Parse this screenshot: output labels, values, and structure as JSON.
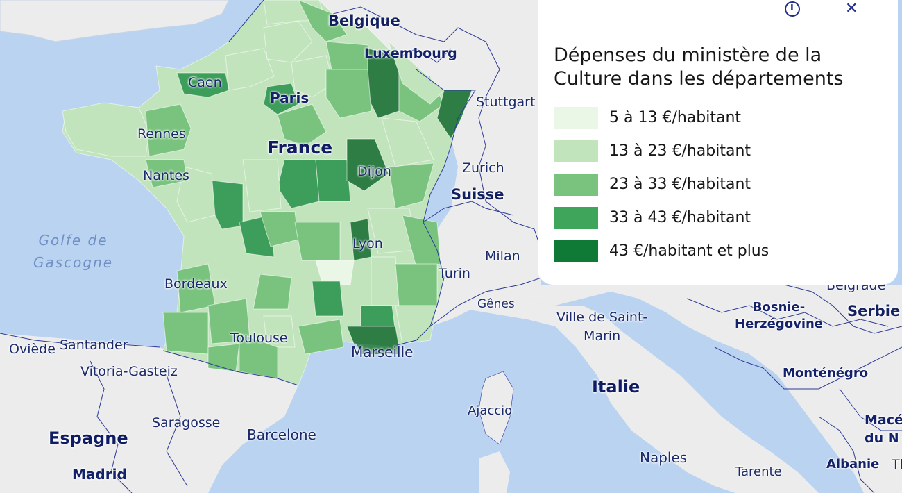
{
  "map": {
    "colors": {
      "sea": "#b9d3f0",
      "land": "#ececec",
      "border": "#2b3a9a",
      "c1": "#eaf6e6",
      "c2": "#c2e4bd",
      "c3": "#79c37f",
      "c4": "#3d9d5a",
      "c5": "#2e7d45"
    },
    "labels": {
      "belgique": "Belgique",
      "luxembourg": "Luxembourg",
      "caen": "Caen",
      "paris": "Paris",
      "stuttgart": "Stuttgart",
      "rennes": "Rennes",
      "france": "France",
      "dijon": "Dijon",
      "zurich": "Zurich",
      "nantes": "Nantes",
      "suisse": "Suisse",
      "golfe": "Golfe de\nGascogne",
      "lyon": "Lyon",
      "milan": "Milan",
      "turin": "Turin",
      "bordeaux": "Bordeaux",
      "belgrade": "Belgrade",
      "genes": "Gênes",
      "bosnie": "Bosnie-\nHerzégovine",
      "serbie": "Serbie",
      "villesaintmarin": "Ville de Saint-\nMarin",
      "toulouse": "Toulouse",
      "oviede": "Oviède",
      "santander": "Santander",
      "marseille": "Marseille",
      "vitoria": "Vitoria-Gasteiz",
      "montenegro": "Monténégro",
      "italie": "Italie",
      "ajaccio": "Ajaccio",
      "macedoine": "Macé\ndu N",
      "saragosse": "Saragosse",
      "espagne": "Espagne",
      "barcelone": "Barcelone",
      "naples": "Naples",
      "madrid": "Madrid",
      "tarente": "Tarente",
      "albanie": "Albanie",
      "th": "Th"
    }
  },
  "legend": {
    "title": "Dépenses du ministère de la Culture dans les départements",
    "info_icon": "info-icon",
    "close_icon": "close-icon",
    "items": [
      {
        "label": "5 à 13 €/habitant",
        "color": "#eaf6e6"
      },
      {
        "label": "13 à 23 €/habitant",
        "color": "#c2e4bd"
      },
      {
        "label": "23 à 33 €/habitant",
        "color": "#79c37f"
      },
      {
        "label": "33 à 43 €/habitant",
        "color": "#3ea55a"
      },
      {
        "label": "43 €/habitant et plus",
        "color": "#0e7a35"
      }
    ]
  }
}
